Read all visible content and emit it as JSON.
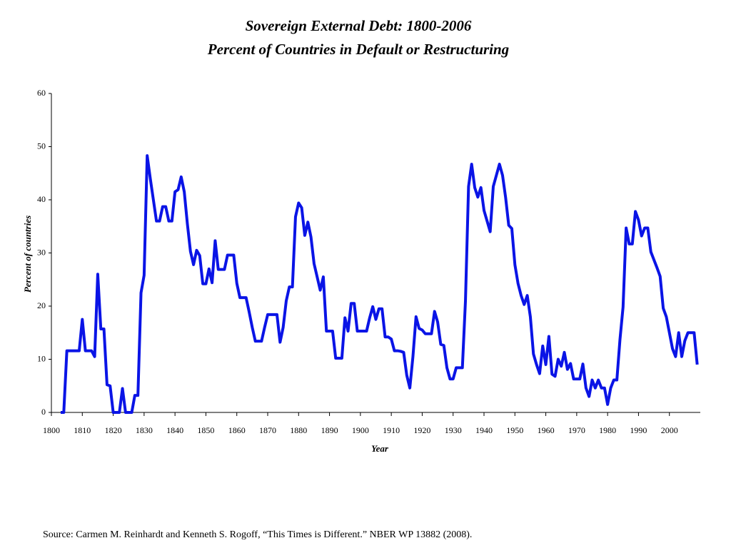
{
  "chart_data": {
    "type": "line",
    "title": "Sovereign External Debt: 1800-2006",
    "subtitle": "Percent of Countries in Default or Restructuring",
    "x_label": "Year",
    "y_label": "Percent of countries",
    "source": "Source: Carmen M. Reinhardt and Kenneth S. Rogoff, “This Times is Different.” NBER WP 13882 (2008).",
    "x": [
      1803,
      1804,
      1805,
      1806,
      1807,
      1808,
      1809,
      1810,
      1811,
      1812,
      1813,
      1814,
      1815,
      1816,
      1817,
      1818,
      1819,
      1820,
      1821,
      1822,
      1823,
      1824,
      1825,
      1826,
      1827,
      1828,
      1829,
      1830,
      1831,
      1832,
      1833,
      1834,
      1835,
      1836,
      1837,
      1838,
      1839,
      1840,
      1841,
      1842,
      1843,
      1844,
      1845,
      1846,
      1847,
      1848,
      1849,
      1850,
      1851,
      1852,
      1853,
      1854,
      1855,
      1856,
      1857,
      1858,
      1859,
      1860,
      1861,
      1862,
      1863,
      1864,
      1865,
      1866,
      1867,
      1868,
      1869,
      1870,
      1871,
      1872,
      1873,
      1874,
      1875,
      1876,
      1877,
      1878,
      1879,
      1880,
      1881,
      1882,
      1883,
      1884,
      1885,
      1886,
      1887,
      1888,
      1889,
      1890,
      1891,
      1892,
      1893,
      1894,
      1895,
      1896,
      1897,
      1898,
      1899,
      1900,
      1901,
      1902,
      1903,
      1904,
      1905,
      1906,
      1907,
      1908,
      1909,
      1910,
      1911,
      1912,
      1913,
      1914,
      1915,
      1916,
      1917,
      1918,
      1919,
      1920,
      1921,
      1922,
      1923,
      1924,
      1925,
      1926,
      1927,
      1928,
      1929,
      1930,
      1931,
      1932,
      1933,
      1934,
      1935,
      1936,
      1937,
      1938,
      1939,
      1940,
      1941,
      1942,
      1943,
      1944,
      1945,
      1946,
      1947,
      1948,
      1949,
      1950,
      1951,
      1952,
      1953,
      1954,
      1955,
      1956,
      1957,
      1958,
      1959,
      1960,
      1961,
      1962,
      1963,
      1964,
      1965,
      1966,
      1967,
      1968,
      1969,
      1970,
      1971,
      1972,
      1973,
      1974,
      1975,
      1976,
      1977,
      1978,
      1979,
      1980,
      1981,
      1982,
      1983,
      1984,
      1985,
      1986,
      1987,
      1988,
      1989,
      1990,
      1991,
      1992,
      1993,
      1994,
      1995,
      1996,
      1997,
      1998,
      1999,
      2000,
      2001,
      2002,
      2003,
      2004,
      2005,
      2006,
      2007,
      2008,
      2009
    ],
    "series": [
      {
        "name": "Percent of countries",
        "color": "#0a14e6",
        "values": [
          0,
          0,
          11.6,
          11.6,
          11.6,
          11.6,
          11.6,
          17.5,
          11.6,
          11.6,
          11.6,
          10.5,
          26,
          15.7,
          15.7,
          5.2,
          5,
          0,
          0,
          0,
          4.5,
          0,
          0,
          0,
          3.2,
          3.2,
          22.5,
          25.8,
          48.3,
          44,
          40,
          36,
          36,
          38.7,
          38.7,
          36,
          36,
          41.5,
          41.9,
          44.3,
          41.5,
          35.5,
          30.3,
          27.8,
          30.5,
          29.5,
          24.2,
          24.2,
          27,
          24.4,
          32.3,
          26.9,
          26.9,
          26.9,
          29.6,
          29.6,
          29.6,
          24.3,
          21.6,
          21.6,
          21.6,
          18.9,
          16,
          13.4,
          13.4,
          13.4,
          16,
          18.4,
          18.4,
          18.4,
          18.4,
          13.2,
          16,
          21,
          23.6,
          23.6,
          36.8,
          39.4,
          38.5,
          33.3,
          35.8,
          33,
          28,
          25.5,
          23,
          25.5,
          15.3,
          15.3,
          15.3,
          10.2,
          10.2,
          10.2,
          17.8,
          15.3,
          20.5,
          20.5,
          15.3,
          15.3,
          15.3,
          15.3,
          17.8,
          19.9,
          17.5,
          19.5,
          19.5,
          14.2,
          14.2,
          13.8,
          11.6,
          11.6,
          11.5,
          11.3,
          7,
          4.6,
          10.5,
          18,
          15.8,
          15.5,
          14.8,
          14.8,
          14.8,
          19,
          17,
          12.8,
          12.6,
          8.4,
          6.3,
          6.3,
          8.4,
          8.4,
          8.4,
          21,
          42.5,
          46.7,
          42.3,
          40.5,
          42.3,
          38,
          36,
          34,
          42.5,
          44.6,
          46.7,
          44.6,
          40.4,
          35.2,
          34.6,
          27.8,
          24.3,
          22,
          20.3,
          22,
          18,
          11,
          9,
          7.3,
          12.5,
          9,
          14.3,
          7.2,
          6.8,
          10,
          8.7,
          11.3,
          8.1,
          9.2,
          6.3,
          6.3,
          6.3,
          9.1,
          4.6,
          3,
          6.1,
          4.6,
          6.1,
          4.6,
          4.6,
          1.5,
          4.6,
          6.1,
          6.1,
          13.7,
          19.8,
          34.7,
          31.7,
          31.7,
          37.8,
          36.2,
          33.2,
          34.7,
          34.7,
          30.2,
          28.7,
          27.2,
          25.6,
          19.6,
          18,
          15,
          12,
          10.5,
          15,
          10.5,
          13.5,
          15,
          15,
          15,
          9
        ]
      }
    ],
    "xlim": [
      1800,
      2010
    ],
    "xticks": [
      1800,
      1810,
      1820,
      1830,
      1840,
      1850,
      1860,
      1870,
      1880,
      1890,
      1900,
      1910,
      1920,
      1930,
      1940,
      1950,
      1960,
      1970,
      1980,
      1990,
      2000
    ],
    "ylim": [
      0,
      60
    ],
    "yticks": [
      0,
      10,
      20,
      30,
      40,
      50,
      60
    ],
    "grid": false
  }
}
